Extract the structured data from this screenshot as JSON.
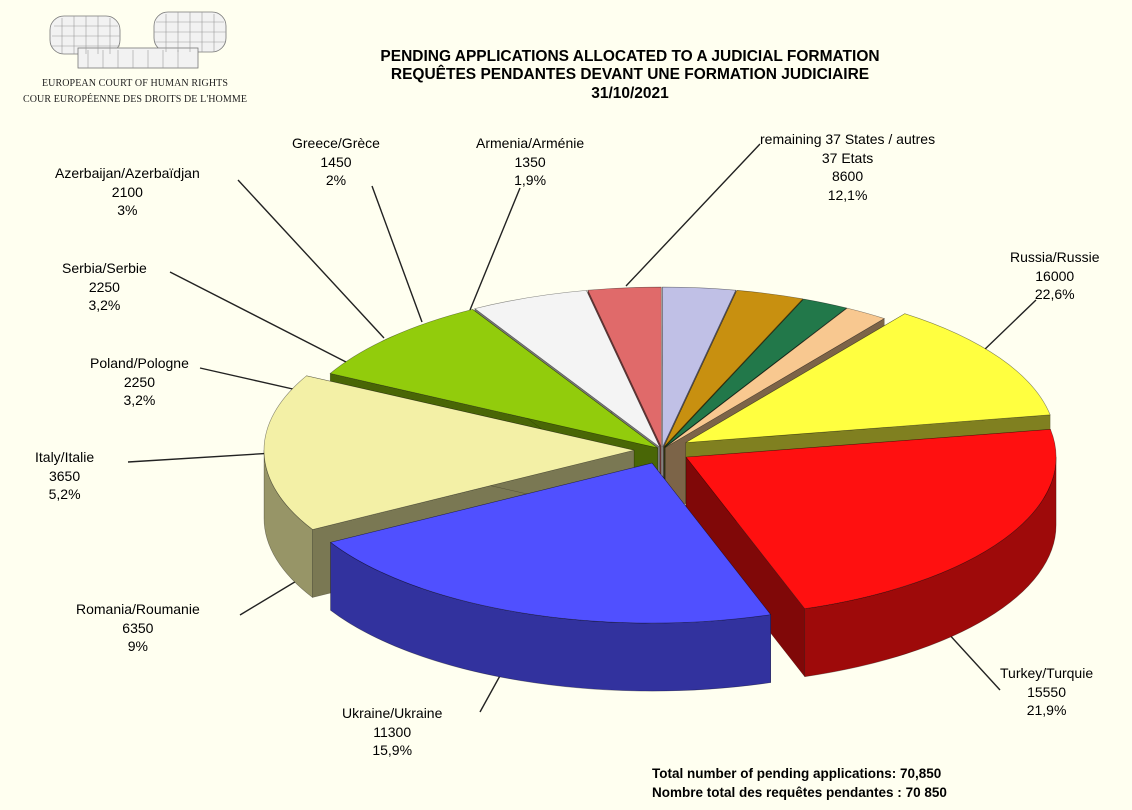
{
  "logo": {
    "line1": "EUROPEAN COURT OF HUMAN RIGHTS",
    "line2": "COUR EUROPÉENNE DES DROITS DE L'HOMME"
  },
  "title": {
    "line1": "PENDING APPLICATIONS ALLOCATED TO A JUDICIAL FORMATION",
    "line2": "REQUÊTES PENDANTES DEVANT UNE FORMATION JUDICIAIRE",
    "line3": "31/10/2021"
  },
  "totals": {
    "en_label": "Total number of pending applications:",
    "en_value": "70,850",
    "fr_label": "Nombre total des requêtes pendantes :",
    "fr_value": "70 850"
  },
  "chart_data": {
    "type": "pie",
    "title": "PENDING APPLICATIONS ALLOCATED TO A JUDICIAL FORMATION / REQUÊTES PENDANTES DEVANT UNE FORMATION JUDICIAIRE",
    "subtitle": "31/10/2021",
    "total": 70850,
    "slices": [
      {
        "label": "Russia/Russie",
        "value": 16000,
        "percent": "22,6%",
        "color": "#ff1010"
      },
      {
        "label": "Turkey/Turquie",
        "value": 15550,
        "percent": "21,9%",
        "color": "#5050ff"
      },
      {
        "label": "Ukraine/Ukraine",
        "value": 11300,
        "percent": "15,9%",
        "color": "#f3f0a6"
      },
      {
        "label": "Romania/Roumanie",
        "value": 6350,
        "percent": "9%",
        "color": "#92cc0c"
      },
      {
        "label": "Italy/Italie",
        "value": 3650,
        "percent": "5,2%",
        "color": "#f4f4f4"
      },
      {
        "label": "Poland/Pologne",
        "value": 2250,
        "percent": "3,2%",
        "color": "#e06a6a"
      },
      {
        "label": "Serbia/Serbie",
        "value": 2250,
        "percent": "3,2%",
        "color": "#c0c0e6"
      },
      {
        "label": "Azerbaijan/Azerbaïdjan",
        "value": 2100,
        "percent": "3%",
        "color": "#c89010"
      },
      {
        "label": "Greece/Grèce",
        "value": 1450,
        "percent": "2%",
        "color": "#22784a"
      },
      {
        "label": "Armenia/Arménie",
        "value": 1350,
        "percent": "1,9%",
        "color": "#f8c890"
      },
      {
        "label": "remaining 37 States / autres",
        "label2": "37 Etats",
        "value": 8600,
        "percent": "12,1%",
        "color": "#ffff40"
      }
    ]
  }
}
